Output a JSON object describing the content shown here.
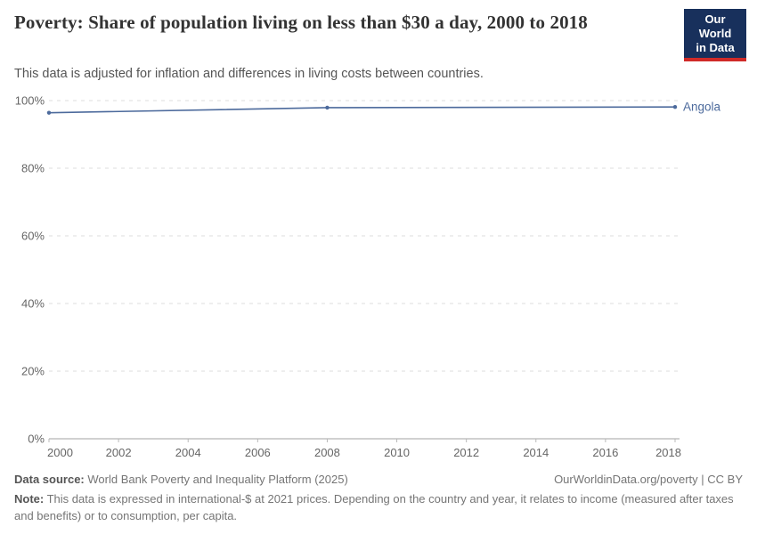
{
  "header": {
    "title": "Poverty: Share of population living on less than $30 a day, 2000 to 2018",
    "subtitle": "This data is adjusted for inflation and differences in living costs between countries.",
    "logo": {
      "line1": "Our World",
      "line2": "in Data"
    }
  },
  "chart_data": {
    "type": "line",
    "title": "Poverty: Share of population living on less than $30 a day, 2000 to 2018",
    "xlabel": "",
    "ylabel": "",
    "xlim": [
      2000,
      2018
    ],
    "ylim": [
      0,
      100
    ],
    "x_ticks": [
      2000,
      2002,
      2004,
      2006,
      2008,
      2010,
      2012,
      2014,
      2016,
      2018
    ],
    "y_ticks": [
      0,
      20,
      40,
      60,
      80,
      100
    ],
    "y_tick_suffix": "%",
    "grid": "horizontal dashed gridlines, solid baseline at 0%",
    "legend_position": "end-of-line label",
    "series": [
      {
        "name": "Angola",
        "color": "#4c6a9c",
        "x": [
          2000,
          2008,
          2018
        ],
        "values": [
          96.4,
          97.9,
          98.1
        ],
        "markers": "dots at surveyed years 2000, 2008, 2018"
      }
    ]
  },
  "footer": {
    "datasource_label": "Data source:",
    "datasource_text": "World Bank Poverty and Inequality Platform (2025)",
    "credit": "OurWorldinData.org/poverty | CC BY",
    "note_label": "Note:",
    "note_text": "This data is expressed in international-$ at 2021 prices. Depending on the country and year, it relates to income (measured after taxes and benefits) or to consumption, per capita."
  },
  "colors": {
    "line": "#4c6a9c",
    "logo_navy": "#18305c",
    "logo_red": "#d02a28",
    "gridline": "#dcdcdc",
    "axis": "#a3a3a3",
    "tick_label": "#666666",
    "title_text": "#333333",
    "subtitle_text": "#555555",
    "footer_text": "#757575"
  }
}
